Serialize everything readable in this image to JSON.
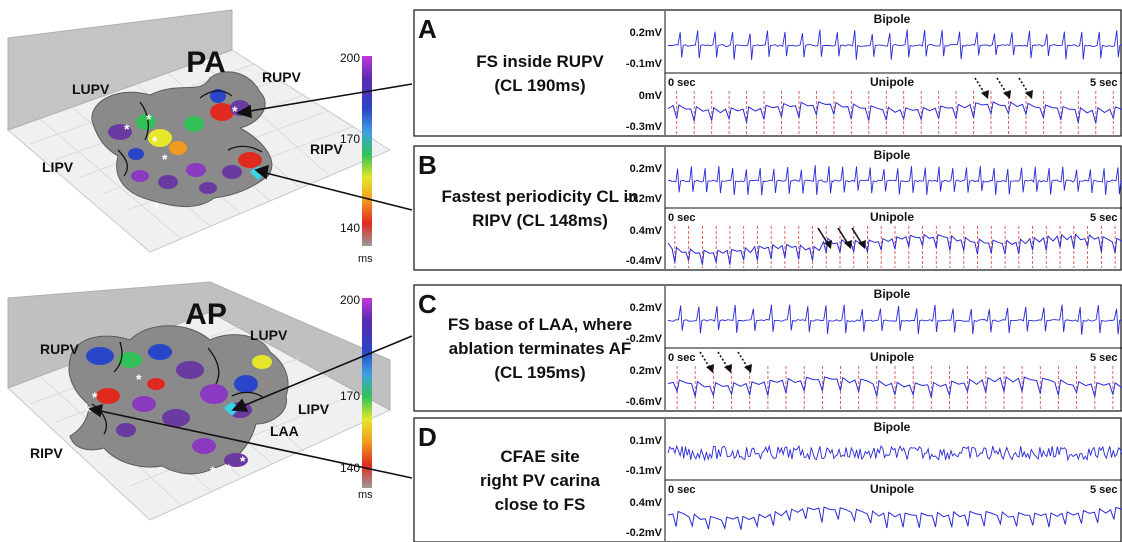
{
  "maps": [
    {
      "view": "PA",
      "scale": {
        "max": "200",
        "mid": "170",
        "min": "140",
        "unit": "ms"
      },
      "labels": {
        "LUPV": "LUPV",
        "RUPV": "RUPV",
        "LIPV": "LIPV",
        "RIPV": "RIPV"
      }
    },
    {
      "view": "AP",
      "scale": {
        "max": "200",
        "mid": "170",
        "min": "140",
        "unit": "ms"
      },
      "labels": {
        "RUPV": "RUPV",
        "LUPV": "LUPV",
        "LIPV": "LIPV",
        "LAA": "LAA",
        "RIPV": "RIPV"
      }
    }
  ],
  "scale_colors": [
    "#6a3aa0",
    "#2a46c8",
    "#3fa0e0",
    "#32c05a",
    "#e6e62a",
    "#f09a20",
    "#e02a20",
    "#9a9a9a"
  ],
  "panels": [
    {
      "letter": "A",
      "caption": [
        "FS inside RUPV",
        "(CL 190ms)"
      ],
      "bipole": {
        "title": "Bipole",
        "top": "0.2mV",
        "bottom": "-0.1mV"
      },
      "unipole": {
        "title": "Unipole",
        "start": "0 sec",
        "end": "5 sec",
        "top": "0mV",
        "bottom": "-0.3mV"
      }
    },
    {
      "letter": "B",
      "caption": [
        "Fastest periodicity CL in",
        "RIPV (CL 148ms)"
      ],
      "bipole": {
        "title": "Bipole",
        "top": "0.2mV",
        "bottom": "-0.2mV"
      },
      "unipole": {
        "title": "Unipole",
        "start": "0 sec",
        "end": "5 sec",
        "top": "0.4mV",
        "bottom": "-0.4mV"
      }
    },
    {
      "letter": "C",
      "caption": [
        "FS base of LAA, where",
        "ablation terminates AF",
        "(CL 195ms)"
      ],
      "bipole": {
        "title": "Bipole",
        "top": "0.2mV",
        "bottom": "-0.2mV"
      },
      "unipole": {
        "title": "Unipole",
        "start": "0 sec",
        "end": "5 sec",
        "top": "0.2mV",
        "bottom": "-0.6mV"
      }
    },
    {
      "letter": "D",
      "caption": [
        "CFAE site",
        "right PV carina",
        "close to FS"
      ],
      "bipole": {
        "title": "Bipole",
        "top": "0.1mV",
        "bottom": "-0.1mV"
      },
      "unipole": {
        "title": "Unipole",
        "start": "0 sec",
        "end": "5 sec",
        "top": "0.4mV",
        "bottom": "-0.2mV"
      }
    }
  ],
  "trace_color": "#2a2ad8",
  "marker_color": "#e05050"
}
